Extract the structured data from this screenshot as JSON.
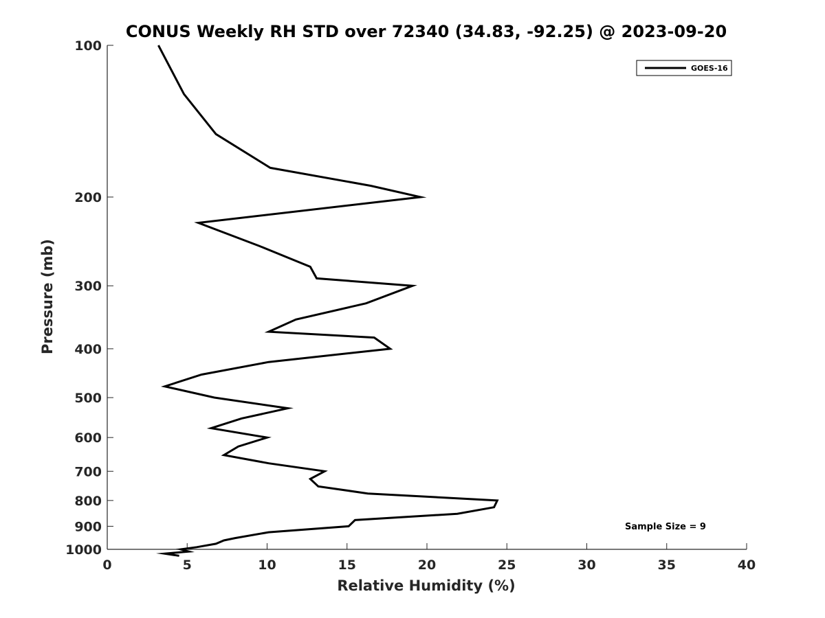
{
  "chart_data": {
    "type": "line",
    "title": "CONUS Weekly RH STD over 72340 (34.83, -92.25) @ 2023-09-20",
    "xlabel": "Relative Humidity (%)",
    "ylabel": "Pressure (mb)",
    "xlim": [
      0,
      40
    ],
    "ylim": [
      100,
      1000
    ],
    "y_scale": "log",
    "y_reversed": true,
    "x_ticks": [
      "0",
      "5",
      "10",
      "15",
      "20",
      "25",
      "30",
      "35",
      "40"
    ],
    "y_ticks": [
      "100",
      "200",
      "300",
      "400",
      "500",
      "600",
      "700",
      "800",
      "900",
      "1000"
    ],
    "grid": false,
    "legend_position": "top-right",
    "annotation": "Sample Size = 9",
    "series": [
      {
        "name": "GOES-16",
        "color": "#000000",
        "points": [
          [
            3.2,
            100
          ],
          [
            4.8,
            125
          ],
          [
            6.8,
            150
          ],
          [
            10.2,
            175
          ],
          [
            16.5,
            190
          ],
          [
            19.6,
            200
          ],
          [
            5.7,
            225
          ],
          [
            9.5,
            250
          ],
          [
            12.7,
            275
          ],
          [
            13.1,
            290
          ],
          [
            19.1,
            300
          ],
          [
            16.2,
            325
          ],
          [
            11.8,
            350
          ],
          [
            10.1,
            370
          ],
          [
            16.7,
            380
          ],
          [
            17.7,
            400
          ],
          [
            10.1,
            425
          ],
          [
            5.9,
            450
          ],
          [
            3.6,
            475
          ],
          [
            6.7,
            500
          ],
          [
            11.3,
            525
          ],
          [
            8.4,
            550
          ],
          [
            6.5,
            575
          ],
          [
            10.0,
            600
          ],
          [
            8.2,
            625
          ],
          [
            7.3,
            650
          ],
          [
            10.1,
            675
          ],
          [
            13.6,
            700
          ],
          [
            12.7,
            725
          ],
          [
            13.2,
            750
          ],
          [
            16.3,
            775
          ],
          [
            24.4,
            800
          ],
          [
            24.2,
            825
          ],
          [
            21.9,
            850
          ],
          [
            15.5,
            875
          ],
          [
            15.1,
            900
          ],
          [
            10.1,
            925
          ],
          [
            8.0,
            950
          ],
          [
            7.3,
            960
          ],
          [
            6.8,
            975
          ],
          [
            5.6,
            990
          ],
          [
            4.6,
            1000
          ],
          [
            5.1,
            1010
          ],
          [
            3.6,
            1020
          ],
          [
            4.5,
            1030
          ]
        ]
      }
    ]
  }
}
